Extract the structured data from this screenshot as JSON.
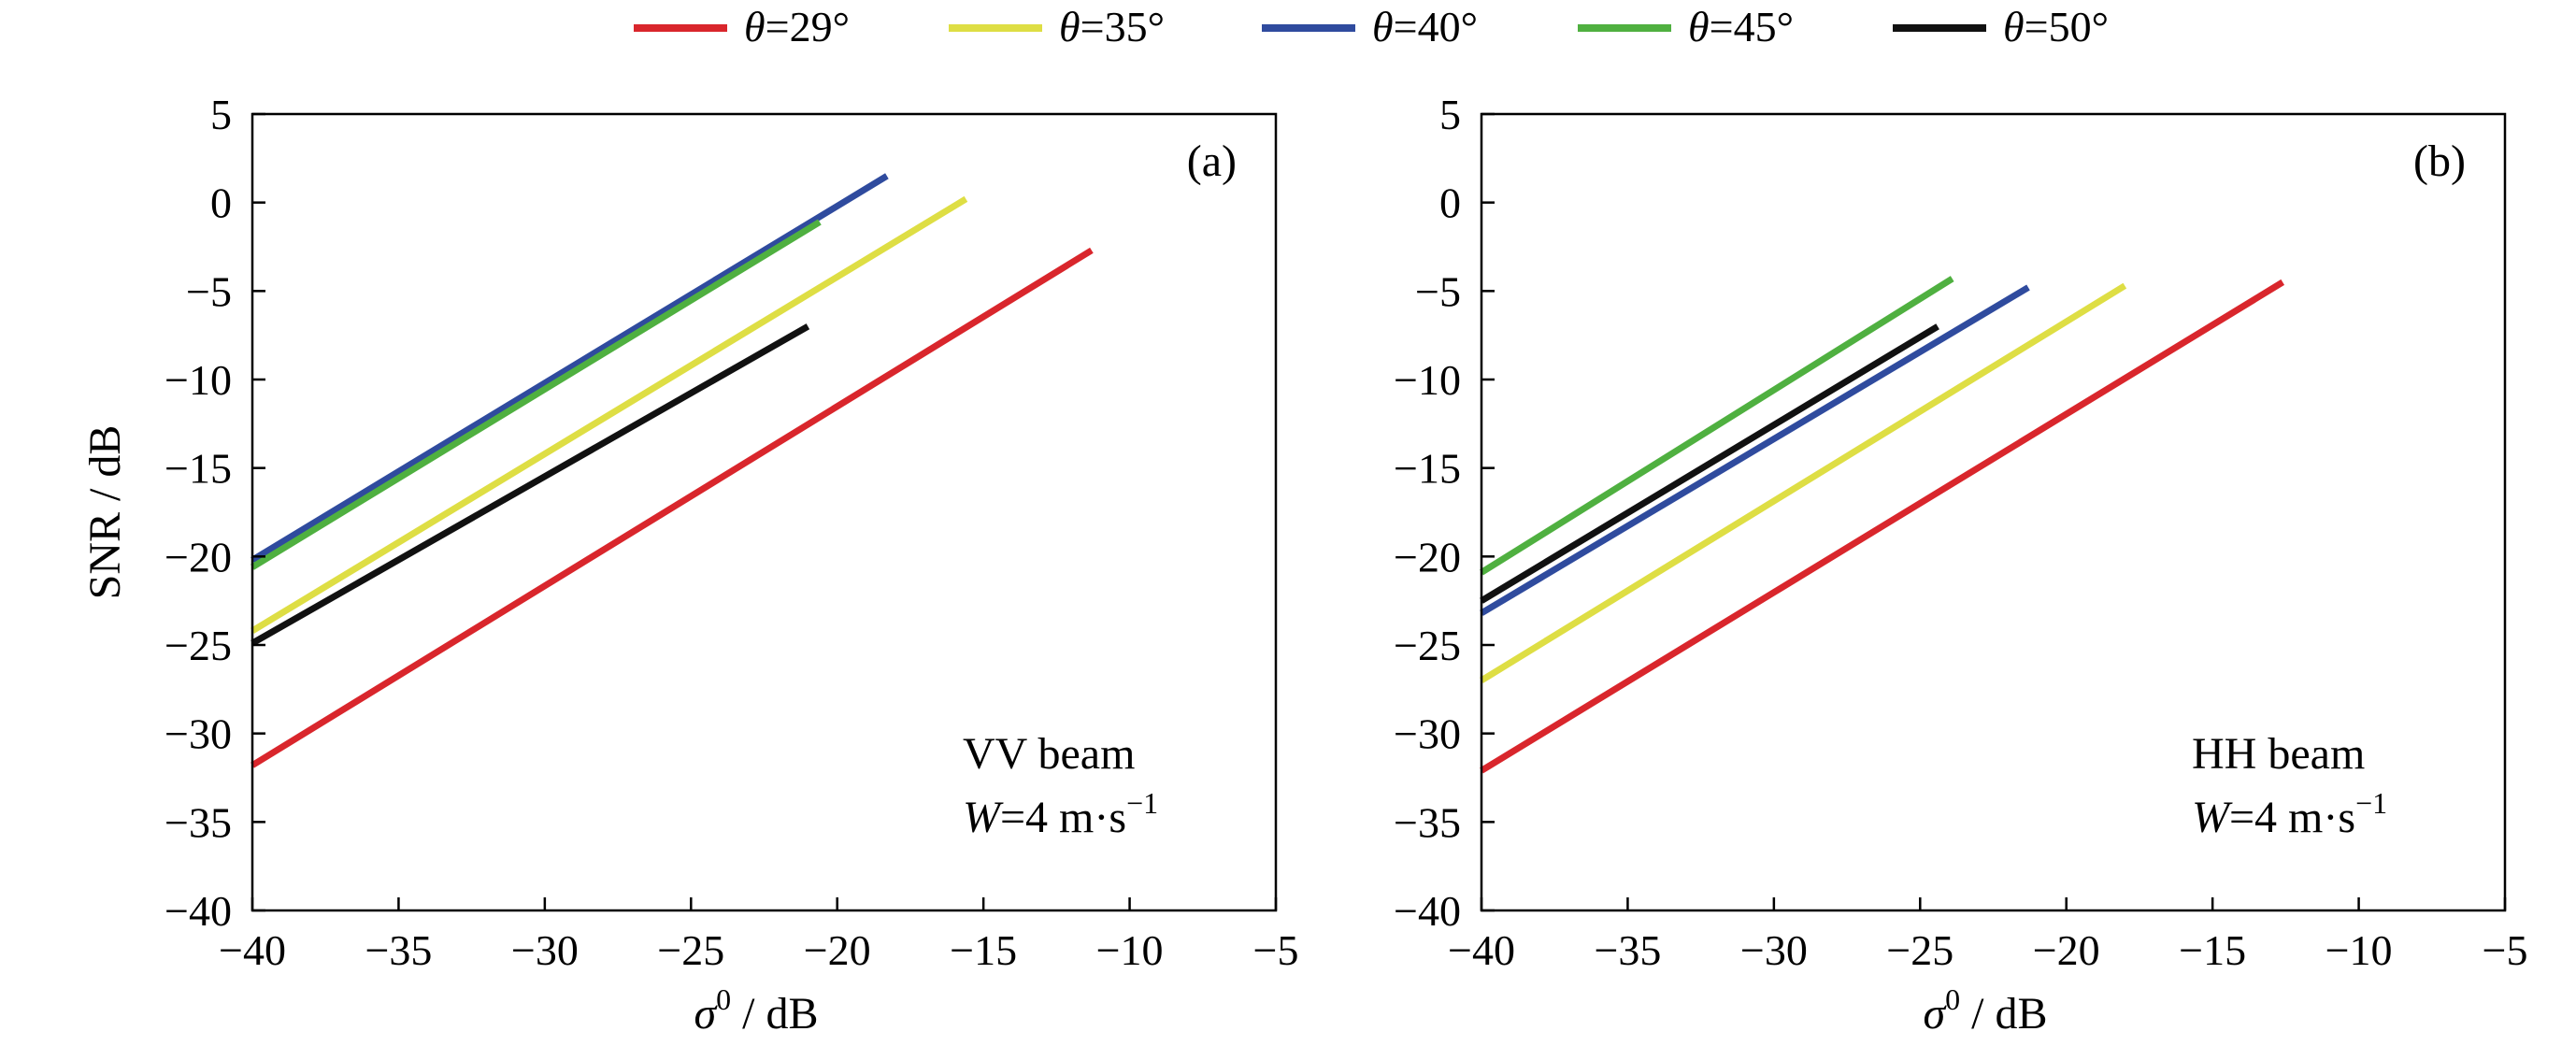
{
  "legend": [
    {
      "theta": "θ",
      "eq": "=",
      "value": "29°",
      "color": "#d9262c"
    },
    {
      "theta": "θ",
      "eq": "=",
      "value": "35°",
      "color": "#dede44"
    },
    {
      "theta": "θ",
      "eq": "=",
      "value": "40°",
      "color": "#2f4b9e"
    },
    {
      "theta": "θ",
      "eq": "=",
      "value": "45°",
      "color": "#4fb040"
    },
    {
      "theta": "θ",
      "eq": "=",
      "value": "50°",
      "color": "#111111"
    }
  ],
  "chart_data": [
    {
      "type": "line",
      "panel_label": "(a)",
      "annotation": {
        "line1": "VV beam",
        "var": "W",
        "eq": "=4 m·s",
        "sup": "−1"
      },
      "ylabel": "SNR / dB",
      "xlabel": {
        "sym": "σ",
        "sup": "0",
        "unit": " / dB"
      },
      "xlim": [
        -40,
        -5
      ],
      "ylim": [
        -40,
        5
      ],
      "xticks": [
        -40,
        -35,
        -30,
        -25,
        -20,
        -15,
        -10,
        -5
      ],
      "yticks": [
        5,
        0,
        -5,
        -10,
        -15,
        -20,
        -25,
        -30,
        -35,
        -40
      ],
      "xtick_labels": [
        "−40",
        "−35",
        "−30",
        "−25",
        "−20",
        "−15",
        "−10",
        "−5"
      ],
      "ytick_labels": [
        "5",
        "0",
        "−5",
        "−10",
        "−15",
        "−20",
        "−25",
        "−30",
        "−35",
        "−40"
      ],
      "series": [
        {
          "x": [
            -40,
            -11.3
          ],
          "y": [
            -31.8,
            -2.7
          ]
        },
        {
          "x": [
            -40,
            -15.6
          ],
          "y": [
            -24.2,
            0.2
          ]
        },
        {
          "x": [
            -40,
            -18.3
          ],
          "y": [
            -20.2,
            1.5
          ]
        },
        {
          "x": [
            -40,
            -20.6
          ],
          "y": [
            -20.6,
            -1.1
          ]
        },
        {
          "x": [
            -40,
            -21.0
          ],
          "y": [
            -24.9,
            -7.0
          ]
        }
      ]
    },
    {
      "type": "line",
      "panel_label": "(b)",
      "annotation": {
        "line1": "HH beam",
        "var": "W",
        "eq": "=4 m·s",
        "sup": "−1"
      },
      "ylabel": "",
      "xlabel": {
        "sym": "σ",
        "sup": "0",
        "unit": " / dB"
      },
      "xlim": [
        -40,
        -5
      ],
      "ylim": [
        -40,
        5
      ],
      "xticks": [
        -40,
        -35,
        -30,
        -25,
        -20,
        -15,
        -10,
        -5
      ],
      "yticks": [
        5,
        0,
        -5,
        -10,
        -15,
        -20,
        -25,
        -30,
        -35,
        -40
      ],
      "xtick_labels": [
        "−40",
        "−35",
        "−30",
        "−25",
        "−20",
        "−15",
        "−10",
        "−5"
      ],
      "ytick_labels": [
        "5",
        "0",
        "−5",
        "−10",
        "−15",
        "−20",
        "−25",
        "−30",
        "−35",
        "−40"
      ],
      "series": [
        {
          "x": [
            -40,
            -12.6
          ],
          "y": [
            -32.1,
            -4.5
          ]
        },
        {
          "x": [
            -40,
            -18.0
          ],
          "y": [
            -27.0,
            -4.7
          ]
        },
        {
          "x": [
            -40,
            -21.3
          ],
          "y": [
            -23.2,
            -4.8
          ]
        },
        {
          "x": [
            -40,
            -23.9
          ],
          "y": [
            -20.9,
            -4.3
          ]
        },
        {
          "x": [
            -40,
            -24.4
          ],
          "y": [
            -22.5,
            -7.0
          ]
        }
      ]
    }
  ]
}
